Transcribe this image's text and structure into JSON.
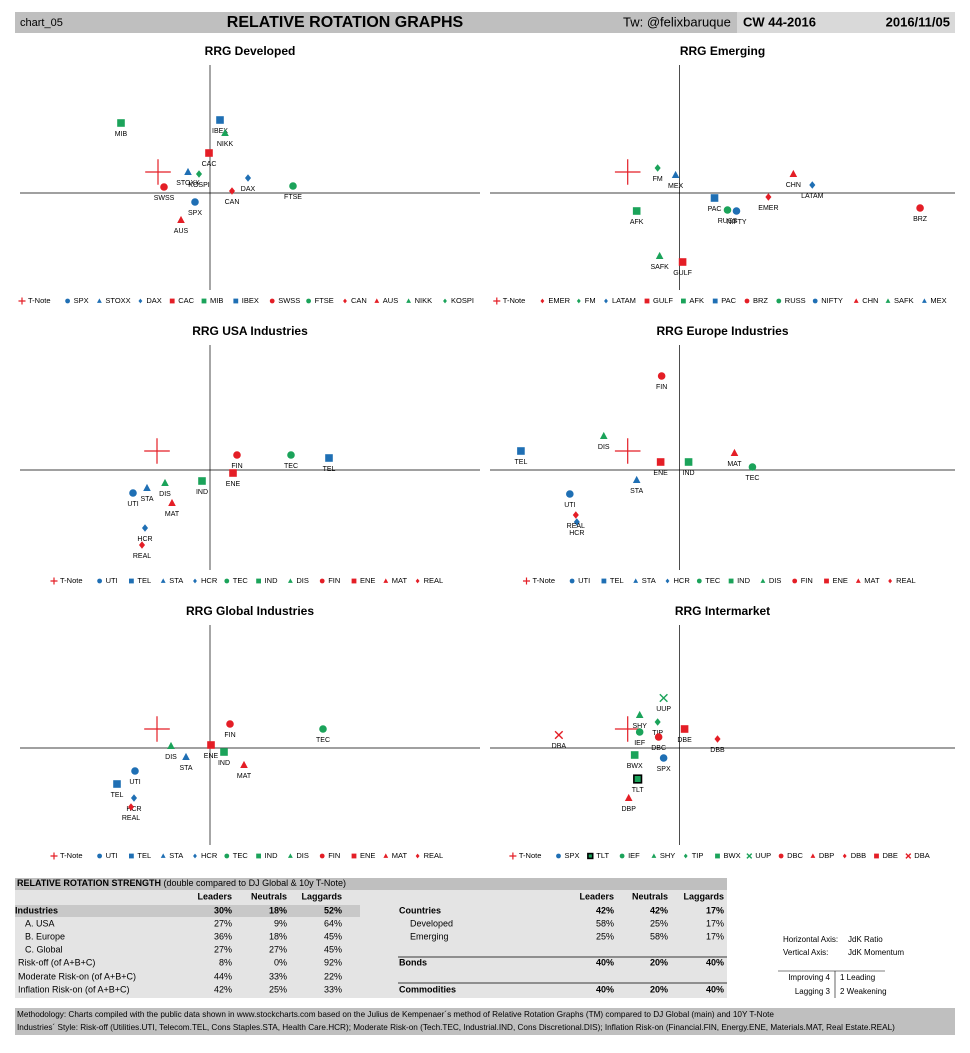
{
  "header": {
    "id": "chart_05",
    "title": "RELATIVE ROTATION GRAPHS",
    "twitter": "Tw: @felixbaruque",
    "week": "CW 44-2016",
    "date": "2016/11/05"
  },
  "chart_data": [
    {
      "type": "scatter",
      "title": "RRG Developed",
      "xlim": [
        -19,
        27
      ],
      "ylim": [
        -9.7,
        12.8
      ],
      "series": [
        {
          "name": "T-Note",
          "color": "#e41e26",
          "marker": "plus",
          "x": -5.2,
          "y": 2.1
        },
        {
          "name": "SPX",
          "color": "#1f6fb4",
          "marker": "circle",
          "x": -1.5,
          "y": -0.9
        },
        {
          "name": "STOXX",
          "color": "#1f6fb4",
          "marker": "triangle",
          "x": -2.2,
          "y": 2.1
        },
        {
          "name": "DAX",
          "color": "#1f6fb4",
          "marker": "diamond",
          "x": 3.8,
          "y": 1.5
        },
        {
          "name": "CAC",
          "color": "#e41e26",
          "marker": "square",
          "x": -0.1,
          "y": 4.0
        },
        {
          "name": "MIB",
          "color": "#1ba35a",
          "marker": "square",
          "x": -8.9,
          "y": 7.0
        },
        {
          "name": "IBEX",
          "color": "#1f6fb4",
          "marker": "square",
          "x": 1.0,
          "y": 7.3
        },
        {
          "name": "SWSS",
          "color": "#e41e26",
          "marker": "circle",
          "x": -4.6,
          "y": 0.6
        },
        {
          "name": "FTSE",
          "color": "#1ba35a",
          "marker": "circle",
          "x": 8.3,
          "y": 0.7
        },
        {
          "name": "CAN",
          "color": "#e41e26",
          "marker": "diamond",
          "x": 2.2,
          "y": 0.2
        },
        {
          "name": "AUS",
          "color": "#e41e26",
          "marker": "triangle",
          "x": -2.9,
          "y": -2.7
        },
        {
          "name": "NIKK",
          "color": "#1ba35a",
          "marker": "triangle",
          "x": 1.5,
          "y": 6.0
        },
        {
          "name": "KOSPI",
          "color": "#1ba35a",
          "marker": "diamond",
          "x": -1.1,
          "y": 1.9
        }
      ]
    },
    {
      "type": "scatter",
      "title": "RRG Emerging",
      "xlim": [
        -19,
        27.6
      ],
      "ylim": [
        -9.7,
        12.8
      ],
      "series": [
        {
          "name": "T-Note",
          "color": "#e41e26",
          "marker": "plus",
          "x": -5.2,
          "y": 2.1
        },
        {
          "name": "EMER",
          "color": "#e41e26",
          "marker": "diamond",
          "x": 8.9,
          "y": -0.4
        },
        {
          "name": "FM",
          "color": "#1ba35a",
          "marker": "diamond",
          "x": -2.2,
          "y": 2.5
        },
        {
          "name": "LATAM",
          "color": "#1f6fb4",
          "marker": "diamond",
          "x": 13.3,
          "y": 0.8
        },
        {
          "name": "GULF",
          "color": "#e41e26",
          "marker": "square",
          "x": 0.3,
          "y": -6.9
        },
        {
          "name": "AFK",
          "color": "#1ba35a",
          "marker": "square",
          "x": -4.3,
          "y": -1.8
        },
        {
          "name": "PAC",
          "color": "#1f6fb4",
          "marker": "square",
          "x": 3.5,
          "y": -0.5
        },
        {
          "name": "BRZ",
          "color": "#e41e26",
          "marker": "circle",
          "x": 24.1,
          "y": -1.5
        },
        {
          "name": "RUSS",
          "color": "#1ba35a",
          "marker": "circle",
          "x": 4.8,
          "y": -1.7
        },
        {
          "name": "NIFTY",
          "color": "#1f6fb4",
          "marker": "circle",
          "x": 5.7,
          "y": -1.8
        },
        {
          "name": "CHN",
          "color": "#e41e26",
          "marker": "triangle",
          "x": 11.4,
          "y": 1.9
        },
        {
          "name": "SAFK",
          "color": "#1ba35a",
          "marker": "triangle",
          "x": -2.0,
          "y": -6.3
        },
        {
          "name": "MEX",
          "color": "#1f6fb4",
          "marker": "triangle",
          "x": -0.4,
          "y": 1.8
        }
      ]
    },
    {
      "type": "scatter",
      "title": "RRG USA Industries",
      "xlim": [
        -19,
        27
      ],
      "ylim": [
        -10,
        12.5
      ],
      "series": [
        {
          "name": "T-Note",
          "color": "#e41e26",
          "marker": "plus",
          "x": -5.3,
          "y": 1.9
        },
        {
          "name": "UTI",
          "color": "#1f6fb4",
          "marker": "circle",
          "x": -7.7,
          "y": -2.3
        },
        {
          "name": "TEL",
          "color": "#1f6fb4",
          "marker": "square",
          "x": 11.9,
          "y": 1.2
        },
        {
          "name": "STA",
          "color": "#1f6fb4",
          "marker": "triangle",
          "x": -6.3,
          "y": -1.8
        },
        {
          "name": "HCR",
          "color": "#1f6fb4",
          "marker": "diamond",
          "x": -6.5,
          "y": -5.8
        },
        {
          "name": "TEC",
          "color": "#1ba35a",
          "marker": "circle",
          "x": 8.1,
          "y": 1.5
        },
        {
          "name": "IND",
          "color": "#1ba35a",
          "marker": "square",
          "x": -0.8,
          "y": -1.1
        },
        {
          "name": "DIS",
          "color": "#1ba35a",
          "marker": "triangle",
          "x": -4.5,
          "y": -1.3
        },
        {
          "name": "FIN",
          "color": "#e41e26",
          "marker": "circle",
          "x": 2.7,
          "y": 1.5
        },
        {
          "name": "ENE",
          "color": "#e41e26",
          "marker": "square",
          "x": 2.3,
          "y": -0.3
        },
        {
          "name": "MAT",
          "color": "#e41e26",
          "marker": "triangle",
          "x": -3.8,
          "y": -3.3
        },
        {
          "name": "REAL",
          "color": "#e41e26",
          "marker": "diamond",
          "x": -6.8,
          "y": -7.5
        }
      ]
    },
    {
      "type": "scatter",
      "title": "RRG Europe Industries",
      "xlim": [
        -19,
        27.6
      ],
      "ylim": [
        -10,
        12.5
      ],
      "series": [
        {
          "name": "T-Note",
          "color": "#e41e26",
          "marker": "plus",
          "x": -5.2,
          "y": 1.9
        },
        {
          "name": "UTI",
          "color": "#1f6fb4",
          "marker": "circle",
          "x": -11.0,
          "y": -2.4
        },
        {
          "name": "TEL",
          "color": "#1f6fb4",
          "marker": "square",
          "x": -15.9,
          "y": 1.9
        },
        {
          "name": "STA",
          "color": "#1f6fb4",
          "marker": "triangle",
          "x": -4.3,
          "y": -1.0
        },
        {
          "name": "HCR",
          "color": "#1f6fb4",
          "marker": "diamond",
          "x": -10.3,
          "y": -5.2
        },
        {
          "name": "TEC",
          "color": "#1ba35a",
          "marker": "circle",
          "x": 7.3,
          "y": 0.3
        },
        {
          "name": "IND",
          "color": "#1ba35a",
          "marker": "square",
          "x": 0.9,
          "y": 0.8
        },
        {
          "name": "DIS",
          "color": "#1ba35a",
          "marker": "triangle",
          "x": -7.6,
          "y": 3.4
        },
        {
          "name": "FIN",
          "color": "#e41e26",
          "marker": "circle",
          "x": -1.8,
          "y": 9.4
        },
        {
          "name": "ENE",
          "color": "#e41e26",
          "marker": "square",
          "x": -1.9,
          "y": 0.8
        },
        {
          "name": "MAT",
          "color": "#e41e26",
          "marker": "triangle",
          "x": 5.5,
          "y": 1.7
        },
        {
          "name": "REAL",
          "color": "#e41e26",
          "marker": "diamond",
          "x": -10.4,
          "y": -4.5
        }
      ]
    },
    {
      "type": "scatter",
      "title": "RRG Global Industries",
      "xlim": [
        -19,
        27
      ],
      "ylim": [
        -9.7,
        12.3
      ],
      "series": [
        {
          "name": "T-Note",
          "color": "#e41e26",
          "marker": "plus",
          "x": -5.3,
          "y": 1.9
        },
        {
          "name": "UTI",
          "color": "#1f6fb4",
          "marker": "circle",
          "x": -7.5,
          "y": -2.3
        },
        {
          "name": "TEL",
          "color": "#1f6fb4",
          "marker": "square",
          "x": -9.3,
          "y": -3.6
        },
        {
          "name": "STA",
          "color": "#1f6fb4",
          "marker": "triangle",
          "x": -2.4,
          "y": -0.9
        },
        {
          "name": "HCR",
          "color": "#1f6fb4",
          "marker": "diamond",
          "x": -7.6,
          "y": -5.0
        },
        {
          "name": "TEC",
          "color": "#1ba35a",
          "marker": "circle",
          "x": 11.3,
          "y": 1.9
        },
        {
          "name": "IND",
          "color": "#1ba35a",
          "marker": "square",
          "x": 1.4,
          "y": -0.4
        },
        {
          "name": "DIS",
          "color": "#1ba35a",
          "marker": "triangle",
          "x": -3.9,
          "y": 0.2
        },
        {
          "name": "FIN",
          "color": "#e41e26",
          "marker": "circle",
          "x": 2.0,
          "y": 2.4
        },
        {
          "name": "ENE",
          "color": "#e41e26",
          "marker": "square",
          "x": 0.1,
          "y": 0.3
        },
        {
          "name": "MAT",
          "color": "#e41e26",
          "marker": "triangle",
          "x": 3.4,
          "y": -1.7
        },
        {
          "name": "REAL",
          "color": "#e41e26",
          "marker": "diamond",
          "x": -7.9,
          "y": -5.9
        }
      ]
    },
    {
      "type": "scatter",
      "title": "RRG Intermarket",
      "xlim": [
        -19,
        27.6
      ],
      "ylim": [
        -9.7,
        12.3
      ],
      "series": [
        {
          "name": "T-Note",
          "color": "#e41e26",
          "marker": "plus",
          "x": -5.2,
          "y": 1.9
        },
        {
          "name": "SPX",
          "color": "#1f6fb4",
          "marker": "circle",
          "x": -1.6,
          "y": -1.0
        },
        {
          "name": "TLT",
          "color": "#1ba35a",
          "marker": "square-outlined",
          "x": -4.2,
          "y": -3.1
        },
        {
          "name": "IEF",
          "color": "#1ba35a",
          "marker": "circle",
          "x": -4.0,
          "y": 1.6
        },
        {
          "name": "SHY",
          "color": "#1ba35a",
          "marker": "triangle",
          "x": -4.0,
          "y": 3.3
        },
        {
          "name": "TIP",
          "color": "#1ba35a",
          "marker": "diamond",
          "x": -2.2,
          "y": 2.6
        },
        {
          "name": "BWX",
          "color": "#1ba35a",
          "marker": "square",
          "x": -4.5,
          "y": -0.7
        },
        {
          "name": "UUP",
          "color": "#1ba35a",
          "marker": "x",
          "x": -1.6,
          "y": 5.0
        },
        {
          "name": "DBC",
          "color": "#e41e26",
          "marker": "circle",
          "x": -2.1,
          "y": 1.1
        },
        {
          "name": "DBP",
          "color": "#e41e26",
          "marker": "triangle",
          "x": -5.1,
          "y": -5.0
        },
        {
          "name": "DBB",
          "color": "#e41e26",
          "marker": "diamond",
          "x": 3.8,
          "y": 0.9
        },
        {
          "name": "DBE",
          "color": "#e41e26",
          "marker": "square",
          "x": 0.5,
          "y": 1.9
        },
        {
          "name": "DBA",
          "color": "#e41e26",
          "marker": "x",
          "x": -12.1,
          "y": 1.3
        }
      ]
    }
  ],
  "table": {
    "title": "RELATIVE ROTATION STRENGTH",
    "subtitle": "(double compared to DJ Global & 10y T-Note)",
    "columns": [
      "Leaders",
      "Neutrals",
      "Laggards"
    ],
    "left_rows": [
      [
        "Industries",
        "30%",
        "18%",
        "52%"
      ],
      [
        "A. USA",
        "27%",
        "9%",
        "64%"
      ],
      [
        "B. Europe",
        "36%",
        "18%",
        "45%"
      ],
      [
        "C. Global",
        "27%",
        "27%",
        "45%"
      ],
      [
        "Risk-off (of A+B+C)",
        "8%",
        "0%",
        "92%"
      ],
      [
        "Moderate Risk-on (of A+B+C)",
        "44%",
        "33%",
        "22%"
      ],
      [
        "Inflation Risk-on (of A+B+C)",
        "42%",
        "25%",
        "33%"
      ]
    ],
    "right_rows": [
      [
        "Countries",
        "42%",
        "42%",
        "17%"
      ],
      [
        "Developed",
        "58%",
        "25%",
        "17%"
      ],
      [
        "Emerging",
        "25%",
        "58%",
        "17%"
      ],
      [
        "Bonds",
        "40%",
        "20%",
        "40%"
      ],
      [
        "Commodities",
        "40%",
        "20%",
        "40%"
      ]
    ]
  },
  "side_note": {
    "h_label": "Horizontal Axis:",
    "h_value": "JdK Ratio",
    "v_label": "Vertical Axis:",
    "v_value": "JdK Momentum",
    "q4": "Improving 4",
    "q1": "1 Leading",
    "q3": "Lagging 3",
    "q2": "2 Weakening"
  },
  "footer": {
    "line1": "Methodology: Charts compiled with the public data shown in www.stockcharts.com based on the Julius de Kempenaer´s method of Relative Rotation Graphs (TM) compared to DJ Global (main) and 10Y T-Note",
    "line2": "Industries´ Style: Risk-off (Utilities.UTI, Telecom.TEL, Cons Staples.STA, Health Care.HCR); Moderate Risk-on (Tech.TEC, Industrial.IND, Cons Discretional.DIS); Inflation Risk-on (Financial.FIN, Energy.ENE, Materials.MAT, Real Estate.REAL)"
  }
}
